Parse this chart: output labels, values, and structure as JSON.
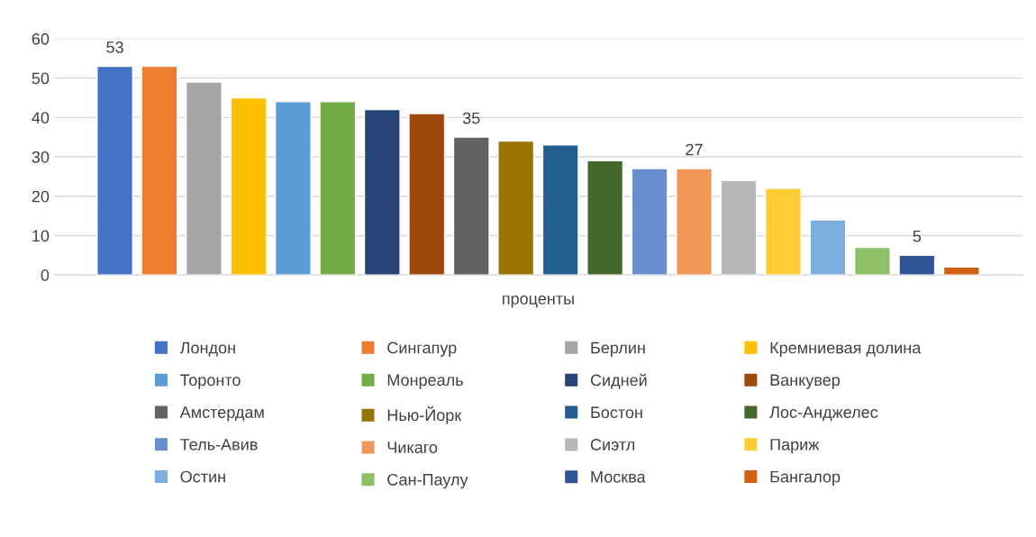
{
  "chart_data": {
    "type": "bar",
    "categories": [
      "проценты"
    ],
    "ylim": [
      0,
      60
    ],
    "yticks": [
      0,
      10,
      20,
      30,
      40,
      50,
      60
    ],
    "grid": "y",
    "legend": "bottom",
    "series": [
      {
        "name": "Лондон",
        "color": "#4472c4",
        "values": [
          53
        ],
        "value_labels": [
          "53"
        ]
      },
      {
        "name": "Сингапур",
        "color": "#ed7d31",
        "values": [
          53
        ],
        "value_labels": [
          null
        ]
      },
      {
        "name": "Берлин",
        "color": "#a5a5a5",
        "values": [
          49
        ],
        "value_labels": [
          null
        ]
      },
      {
        "name": "Кремниевая долина",
        "color": "#ffc000",
        "values": [
          45
        ],
        "value_labels": [
          null
        ]
      },
      {
        "name": "Торонто",
        "color": "#5b9bd5",
        "values": [
          44
        ],
        "value_labels": [
          null
        ]
      },
      {
        "name": "Монреаль",
        "color": "#70ad47",
        "values": [
          44
        ],
        "value_labels": [
          null
        ]
      },
      {
        "name": "Сидней",
        "color": "#264478",
        "values": [
          42
        ],
        "value_labels": [
          null
        ]
      },
      {
        "name": "Ванкувер",
        "color": "#9e480e",
        "values": [
          41
        ],
        "value_labels": [
          null
        ]
      },
      {
        "name": "Амстердам",
        "color": "#636363",
        "values": [
          35
        ],
        "value_labels": [
          "35"
        ]
      },
      {
        "name": "Нью-Йорк",
        "color": "#997300",
        "values": [
          34
        ],
        "value_labels": [
          null
        ]
      },
      {
        "name": "Бостон",
        "color": "#255e91",
        "values": [
          33
        ],
        "value_labels": [
          null
        ]
      },
      {
        "name": "Лос-Анджелес",
        "color": "#43682b",
        "values": [
          29
        ],
        "value_labels": [
          null
        ]
      },
      {
        "name": "Тель-Авив",
        "color": "#698ed0",
        "values": [
          27
        ],
        "value_labels": [
          null
        ]
      },
      {
        "name": "Чикаго",
        "color": "#f1975a",
        "values": [
          27
        ],
        "value_labels": [
          "27"
        ]
      },
      {
        "name": "Сиэтл",
        "color": "#b7b7b7",
        "values": [
          24
        ],
        "value_labels": [
          null
        ]
      },
      {
        "name": "Париж",
        "color": "#ffcd33",
        "values": [
          22
        ],
        "value_labels": [
          null
        ]
      },
      {
        "name": "Остин",
        "color": "#7cafdd",
        "values": [
          14
        ],
        "value_labels": [
          null
        ]
      },
      {
        "name": "Сан-Паулу",
        "color": "#8cc168",
        "values": [
          7
        ],
        "value_labels": [
          null
        ]
      },
      {
        "name": "Москва",
        "color": "#2f5597",
        "values": [
          5
        ],
        "value_labels": [
          "5"
        ]
      },
      {
        "name": "Бангалор",
        "color": "#d26012",
        "values": [
          2
        ],
        "value_labels": [
          null
        ]
      }
    ]
  }
}
